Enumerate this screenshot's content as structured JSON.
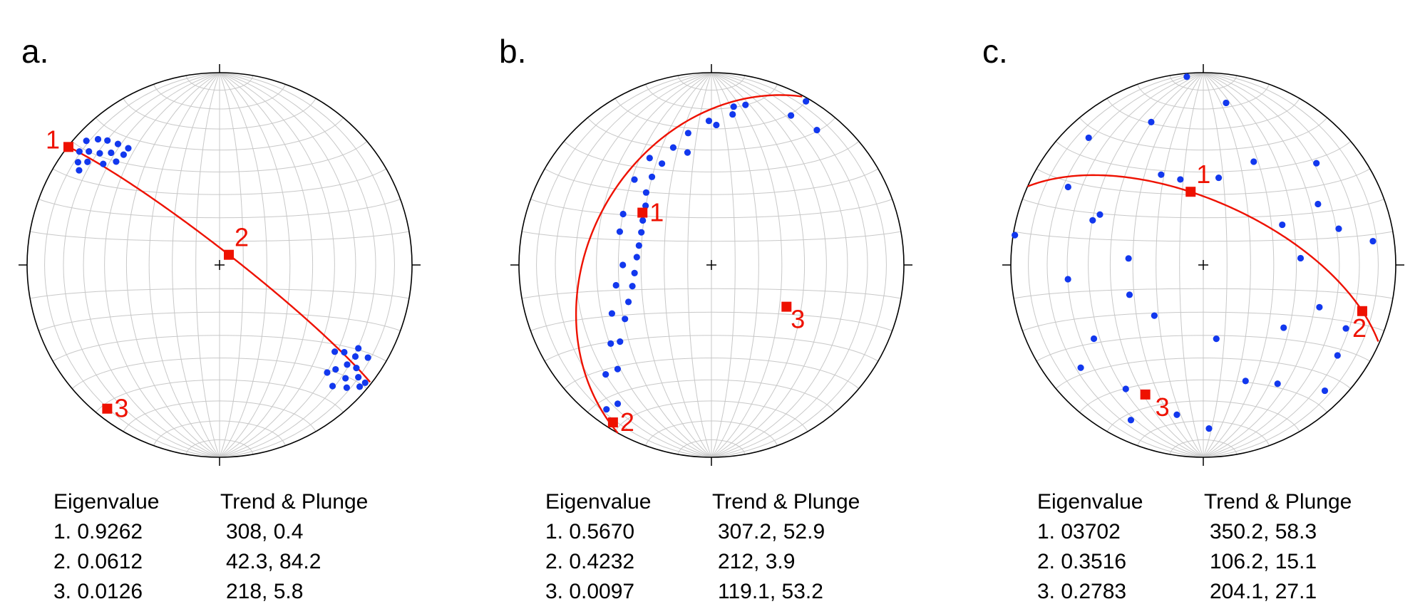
{
  "colors": {
    "points": "#1238ee",
    "eigen": "#ee1100",
    "grid": "#c8c8c8"
  },
  "panels": [
    {
      "id": "a",
      "letter": "a.",
      "table": {
        "header": [
          "Eigenvalue",
          "Trend & Plunge"
        ],
        "rows": [
          [
            "1. 0.9262",
            "308, 0.4"
          ],
          [
            "2. 0.0612",
            "42.3, 84.2"
          ],
          [
            "3. 0.0126",
            "218, 5.8"
          ]
        ]
      },
      "great_circle": {
        "pole_trend": 218,
        "pole_plunge": 5.8
      },
      "eigenvectors": [
        {
          "label": "1",
          "trend": 308,
          "plunge": 0.4
        },
        {
          "label": "2",
          "trend": 42.3,
          "plunge": 84.2
        },
        {
          "label": "3",
          "trend": 218,
          "plunge": 5.8
        }
      ],
      "points": [
        [
          313,
          6
        ],
        [
          316,
          10
        ],
        [
          318,
          14
        ],
        [
          320,
          19
        ],
        [
          313,
          16
        ],
        [
          316,
          20
        ],
        [
          311,
          11
        ],
        [
          309,
          7
        ],
        [
          306,
          10
        ],
        [
          308,
          14
        ],
        [
          304,
          13
        ],
        [
          311,
          21
        ],
        [
          315,
          25
        ],
        [
          319,
          25
        ],
        [
          322,
          24
        ],
        [
          131,
          4
        ],
        [
          129,
          8
        ],
        [
          127,
          12
        ],
        [
          124,
          16
        ],
        [
          128,
          17
        ],
        [
          132,
          13
        ],
        [
          134,
          9
        ],
        [
          132,
          20
        ],
        [
          125,
          22
        ],
        [
          121,
          17
        ],
        [
          127,
          26
        ],
        [
          122,
          10
        ],
        [
          137,
          15
        ],
        [
          135,
          22
        ],
        [
          129,
          3
        ]
      ]
    },
    {
      "id": "b",
      "letter": "b.",
      "table": {
        "header": [
          "Eigenvalue",
          "Trend & Plunge"
        ],
        "rows": [
          [
            "1. 0.5670",
            "307.2, 52.9"
          ],
          [
            "2. 0.4232",
            "212, 3.9"
          ],
          [
            "3. 0.0097",
            "119.1, 53.2"
          ]
        ]
      },
      "great_circle": {
        "pole_trend": 119.1,
        "pole_plunge": 53.2
      },
      "eigenvectors": [
        {
          "label": "1",
          "trend": 307.2,
          "plunge": 52.9
        },
        {
          "label": "2",
          "trend": 212,
          "plunge": 3.9
        },
        {
          "label": "3",
          "trend": 119.1,
          "plunge": 53.2
        }
      ],
      "points": [
        [
          30,
          2
        ],
        [
          38,
          12
        ],
        [
          28,
          13
        ],
        [
          12,
          16
        ],
        [
          8,
          22
        ],
        [
          359,
          26
        ],
        [
          350,
          31
        ],
        [
          342,
          36
        ],
        [
          334,
          41
        ],
        [
          326,
          44
        ],
        [
          318,
          48
        ],
        [
          312,
          52
        ],
        [
          303,
          55
        ],
        [
          295,
          57
        ],
        [
          285,
          58
        ],
        [
          276,
          58
        ],
        [
          264,
          57
        ],
        [
          255,
          55
        ],
        [
          246,
          51
        ],
        [
          238,
          46
        ],
        [
          230,
          38
        ],
        [
          222,
          28
        ],
        [
          214,
          14
        ],
        [
          8,
          18
        ],
        [
          2,
          28
        ],
        [
          348,
          40
        ],
        [
          330,
          36
        ],
        [
          318,
          40
        ],
        [
          300,
          46
        ],
        [
          290,
          48
        ],
        [
          270,
          52
        ],
        [
          258,
          48
        ],
        [
          244,
          42
        ],
        [
          232,
          34
        ],
        [
          224,
          22
        ],
        [
          216,
          8
        ]
      ]
    },
    {
      "id": "c",
      "letter": "c.",
      "table": {
        "header": [
          "Eigenvalue",
          "Trend & Plunge"
        ],
        "rows": [
          [
            "1. 03702",
            "350.2, 58.3"
          ],
          [
            "2. 0.3516",
            "106.2, 15.1"
          ],
          [
            "3. 0.2783",
            "204.1, 27.1"
          ]
        ]
      },
      "great_circle": {
        "pole_trend": 204.1,
        "pole_plunge": 27.1
      },
      "eigenvectors": [
        {
          "label": "1",
          "trend": 350.2,
          "plunge": 58.3
        },
        {
          "label": "2",
          "trend": 106.2,
          "plunge": 15.1
        },
        {
          "label": "3",
          "trend": 204.1,
          "plunge": 27.1
        }
      ],
      "points": [
        [
          355,
          2
        ],
        [
          8,
          16
        ],
        [
          340,
          22
        ],
        [
          318,
          12
        ],
        [
          335,
          47
        ],
        [
          26,
          40
        ],
        [
          48,
          22
        ],
        [
          292,
          38
        ],
        [
          300,
          20
        ],
        [
          279,
          1
        ],
        [
          62,
          33
        ],
        [
          75,
          28
        ],
        [
          345,
          52
        ],
        [
          10,
          52
        ],
        [
          63,
          52
        ],
        [
          86,
          48
        ],
        [
          82,
          12
        ],
        [
          110,
          36
        ],
        [
          114,
          20
        ],
        [
          124,
          17
        ],
        [
          136,
          10
        ],
        [
          160,
          36
        ],
        [
          128,
          46
        ],
        [
          170,
          58
        ],
        [
          236,
          32
        ],
        [
          212,
          25
        ],
        [
          190,
          22
        ],
        [
          178,
          16
        ],
        [
          148,
          28
        ],
        [
          224,
          60
        ],
        [
          248,
          56
        ],
        [
          264,
          30
        ],
        [
          275,
          58
        ],
        [
          296,
          40
        ],
        [
          230,
          18
        ],
        [
          205,
          12
        ]
      ]
    }
  ]
}
